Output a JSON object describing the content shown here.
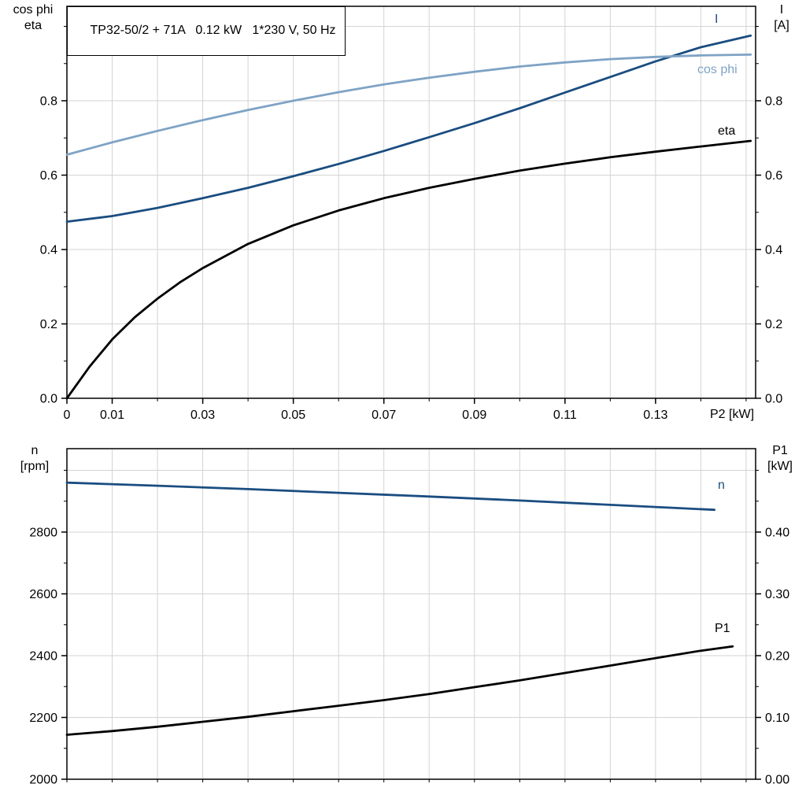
{
  "title_box": "TP32-50/2 + 71A   0.12 kW   1*230 V, 50 Hz",
  "colors": {
    "dark_blue": "#1a4d80",
    "light_blue": "#7fa3c5",
    "black": "#000000",
    "grid": "#d3d3d3"
  },
  "chart_data": {
    "type": "line",
    "title": "TP32-50/2 + 71A   0.12 kW   1*230 V, 50 Hz",
    "charts": [
      {
        "name": "cosphi-eta-current-vs-p2",
        "x_axis_label": "P2 [kW]",
        "xlim": [
          0,
          0.1521
        ],
        "x_gridstep": 0.01,
        "x_ticks": [
          {
            "v": 0,
            "label": "0"
          },
          {
            "v": 0.01,
            "label": "0.01"
          },
          {
            "v": 0.03,
            "label": "0.03"
          },
          {
            "v": 0.05,
            "label": "0.05"
          },
          {
            "v": 0.07,
            "label": "0.07"
          },
          {
            "v": 0.09,
            "label": "0.09"
          },
          {
            "v": 0.11,
            "label": "0.11"
          },
          {
            "v": 0.13,
            "label": "0.13"
          }
        ],
        "left_axis": {
          "title_lines": [
            "cos phi",
            "eta"
          ],
          "lim": [
            0,
            1.054
          ],
          "gridstep": 0.2,
          "minorstep": 0.1,
          "ticks": [
            {
              "v": 0.0,
              "label": "0.0"
            },
            {
              "v": 0.2,
              "label": "0.2"
            },
            {
              "v": 0.4,
              "label": "0.4"
            },
            {
              "v": 0.6,
              "label": "0.6"
            },
            {
              "v": 0.8,
              "label": "0.8"
            }
          ]
        },
        "right_axis": {
          "title_lines": [
            "I",
            "[A]"
          ],
          "lim": [
            0,
            1.054
          ],
          "minorstep": 0.1,
          "ticks": [
            {
              "v": 0.0,
              "label": "0.0"
            },
            {
              "v": 0.2,
              "label": "0.2"
            },
            {
              "v": 0.4,
              "label": "0.4"
            },
            {
              "v": 0.6,
              "label": "0.6"
            },
            {
              "v": 0.8,
              "label": "0.8"
            }
          ]
        },
        "series": [
          {
            "key": "I",
            "label": "I",
            "color_ref": "dark_blue",
            "axis": "left",
            "points": [
              [
                0,
                0.475
              ],
              [
                0.01,
                0.49
              ],
              [
                0.02,
                0.512
              ],
              [
                0.03,
                0.538
              ],
              [
                0.04,
                0.566
              ],
              [
                0.05,
                0.597
              ],
              [
                0.06,
                0.63
              ],
              [
                0.07,
                0.665
              ],
              [
                0.08,
                0.702
              ],
              [
                0.09,
                0.74
              ],
              [
                0.1,
                0.78
              ],
              [
                0.11,
                0.822
              ],
              [
                0.12,
                0.864
              ],
              [
                0.13,
                0.906
              ],
              [
                0.14,
                0.944
              ],
              [
                0.151,
                0.975
              ]
            ]
          },
          {
            "key": "cos phi",
            "label": "cos phi",
            "color_ref": "light_blue",
            "axis": "left",
            "points": [
              [
                0,
                0.655
              ],
              [
                0.01,
                0.688
              ],
              [
                0.02,
                0.719
              ],
              [
                0.03,
                0.748
              ],
              [
                0.04,
                0.775
              ],
              [
                0.05,
                0.8
              ],
              [
                0.06,
                0.823
              ],
              [
                0.07,
                0.844
              ],
              [
                0.08,
                0.862
              ],
              [
                0.09,
                0.878
              ],
              [
                0.1,
                0.892
              ],
              [
                0.11,
                0.903
              ],
              [
                0.12,
                0.912
              ],
              [
                0.13,
                0.918
              ],
              [
                0.14,
                0.922
              ],
              [
                0.151,
                0.924
              ]
            ]
          },
          {
            "key": "eta",
            "label": "eta",
            "color_ref": "black",
            "axis": "left",
            "points": [
              [
                0,
                0
              ],
              [
                0.005,
                0.085
              ],
              [
                0.01,
                0.158
              ],
              [
                0.015,
                0.218
              ],
              [
                0.02,
                0.268
              ],
              [
                0.025,
                0.312
              ],
              [
                0.03,
                0.35
              ],
              [
                0.04,
                0.415
              ],
              [
                0.05,
                0.465
              ],
              [
                0.06,
                0.505
              ],
              [
                0.07,
                0.538
              ],
              [
                0.08,
                0.566
              ],
              [
                0.09,
                0.59
              ],
              [
                0.1,
                0.612
              ],
              [
                0.11,
                0.631
              ],
              [
                0.12,
                0.648
              ],
              [
                0.13,
                0.663
              ],
              [
                0.14,
                0.677
              ],
              [
                0.151,
                0.692
              ]
            ]
          }
        ]
      },
      {
        "name": "speed-p1-vs-p2",
        "x_axis_label": "",
        "xlim": [
          0,
          0.1521
        ],
        "x_gridstep": 0.01,
        "x_ticks": [],
        "left_axis": {
          "title_lines": [
            "n",
            "[rpm]"
          ],
          "lim": [
            2000,
            3070
          ],
          "gridstep": 200,
          "minorstep": 100,
          "ticks": [
            {
              "v": 2000,
              "label": "2000"
            },
            {
              "v": 2200,
              "label": "2200"
            },
            {
              "v": 2400,
              "label": "2400"
            },
            {
              "v": 2600,
              "label": "2600"
            },
            {
              "v": 2800,
              "label": "2800"
            }
          ]
        },
        "right_axis": {
          "title_lines": [
            "P1",
            "[kW]"
          ],
          "lim": [
            0,
            0.535
          ],
          "minorstep": 0.05,
          "ticks": [
            {
              "v": 0.0,
              "label": "0.00"
            },
            {
              "v": 0.1,
              "label": "0.10"
            },
            {
              "v": 0.2,
              "label": "0.20"
            },
            {
              "v": 0.3,
              "label": "0.30"
            },
            {
              "v": 0.4,
              "label": "0.40"
            }
          ]
        },
        "series": [
          {
            "key": "n",
            "label": "n",
            "color_ref": "dark_blue",
            "axis": "left",
            "points": [
              [
                0,
                2960
              ],
              [
                0.02,
                2950
              ],
              [
                0.04,
                2939
              ],
              [
                0.06,
                2927
              ],
              [
                0.08,
                2915
              ],
              [
                0.1,
                2902
              ],
              [
                0.12,
                2888
              ],
              [
                0.143,
                2872
              ]
            ]
          },
          {
            "key": "P1",
            "label": "P1",
            "color_ref": "black",
            "axis": "right",
            "points": [
              [
                0,
                0.072
              ],
              [
                0.01,
                0.078
              ],
              [
                0.02,
                0.085
              ],
              [
                0.03,
                0.093
              ],
              [
                0.04,
                0.101
              ],
              [
                0.05,
                0.11
              ],
              [
                0.06,
                0.119
              ],
              [
                0.07,
                0.128
              ],
              [
                0.08,
                0.138
              ],
              [
                0.09,
                0.149
              ],
              [
                0.1,
                0.16
              ],
              [
                0.11,
                0.172
              ],
              [
                0.12,
                0.184
              ],
              [
                0.13,
                0.196
              ],
              [
                0.14,
                0.208
              ],
              [
                0.147,
                0.215
              ]
            ]
          }
        ]
      }
    ]
  }
}
